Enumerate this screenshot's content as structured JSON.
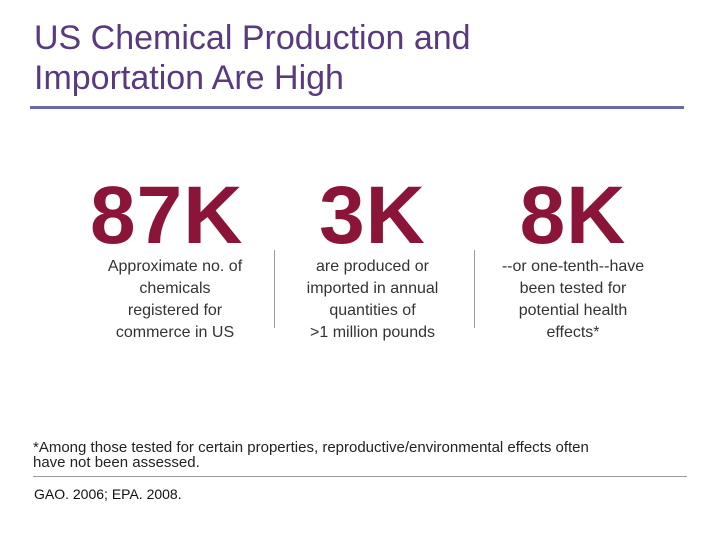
{
  "slide": {
    "title_line1": "US Chemical Production and",
    "title_line2": "Importation Are High"
  },
  "stats": [
    {
      "value": "87K",
      "desc_lines": [
        "Approximate no. of",
        "chemicals",
        "registered for",
        "commerce in US"
      ]
    },
    {
      "value": "3K",
      "desc_lines": [
        "are produced or",
        "imported in annual",
        "quantities of",
        ">1 million pounds"
      ]
    },
    {
      "value": "8K",
      "desc_lines": [
        "--or one-tenth--have",
        "been tested for",
        "potential health",
        "effects*"
      ]
    }
  ],
  "footnote": {
    "line1": "*Among those tested for certain properties, reproductive/environmental effects often",
    "line2": "have not been assessed."
  },
  "source": "GAO. 2006; EPA. 2008.",
  "colors": {
    "title": "#5a3a7e",
    "stat": "#8a1538",
    "rule": "#6b6aa6"
  }
}
